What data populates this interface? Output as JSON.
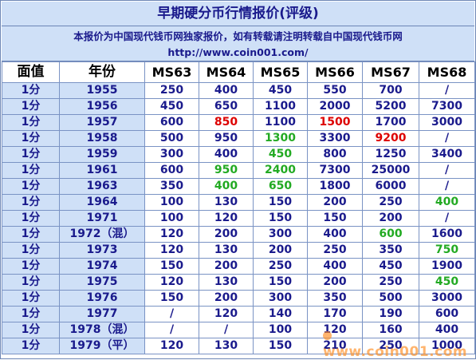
{
  "title": "早期硬分币行情报价(评级)",
  "notice": {
    "line1": "本报价为中国现代钱币网独家报价，如有转载请注明转载自中国现代钱币网",
    "line2": "http://www.coin001.com/"
  },
  "colors": {
    "header_bg": "#cfe0f7",
    "text_blue": "#1a1a8c",
    "highlight_red": "#dd0000",
    "highlight_green": "#22aa22"
  },
  "table": {
    "headers": [
      "面值",
      "年份",
      "MS63",
      "MS64",
      "MS65",
      "MS66",
      "MS67",
      "MS68"
    ],
    "rows": [
      {
        "denom": "1分",
        "year": "1955",
        "values": [
          "250",
          "400",
          "450",
          "550",
          "700",
          "/"
        ]
      },
      {
        "denom": "1分",
        "year": "1956",
        "values": [
          "450",
          "650",
          "1100",
          "2000",
          "5200",
          "7300"
        ]
      },
      {
        "denom": "1分",
        "year": "1957",
        "values": [
          "600",
          "850",
          "1100",
          "1500",
          "1700",
          "3000"
        ]
      },
      {
        "denom": "1分",
        "year": "1958",
        "values": [
          "500",
          "950",
          "1300",
          "3300",
          "9200",
          "/"
        ]
      },
      {
        "denom": "1分",
        "year": "1959",
        "values": [
          "300",
          "400",
          "450",
          "800",
          "1250",
          "3400"
        ]
      },
      {
        "denom": "1分",
        "year": "1961",
        "values": [
          "600",
          "950",
          "2400",
          "7300",
          "25000",
          "/"
        ]
      },
      {
        "denom": "1分",
        "year": "1963",
        "values": [
          "350",
          "400",
          "650",
          "1800",
          "6000",
          "/"
        ]
      },
      {
        "denom": "1分",
        "year": "1964",
        "values": [
          "100",
          "130",
          "150",
          "200",
          "250",
          "400"
        ]
      },
      {
        "denom": "1分",
        "year": "1971",
        "values": [
          "100",
          "120",
          "150",
          "150",
          "200",
          "/"
        ]
      },
      {
        "denom": "1分",
        "year": "1972（混）",
        "values": [
          "120",
          "200",
          "300",
          "400",
          "600",
          "1600"
        ]
      },
      {
        "denom": "1分",
        "year": "1973",
        "values": [
          "120",
          "130",
          "200",
          "250",
          "350",
          "750"
        ]
      },
      {
        "denom": "1分",
        "year": "1974",
        "values": [
          "150",
          "200",
          "250",
          "400",
          "450",
          "1900"
        ]
      },
      {
        "denom": "1分",
        "year": "1975",
        "values": [
          "120",
          "130",
          "150",
          "200",
          "250",
          "450"
        ]
      },
      {
        "denom": "1分",
        "year": "1976",
        "values": [
          "150",
          "200",
          "300",
          "350",
          "500",
          "3000"
        ]
      },
      {
        "denom": "1分",
        "year": "1977",
        "values": [
          "/",
          "120",
          "140",
          "170",
          "190",
          "600"
        ]
      },
      {
        "denom": "1分",
        "year": "1978（混）",
        "values": [
          "/",
          "/",
          "100",
          "120",
          "160",
          "400"
        ]
      },
      {
        "denom": "1分",
        "year": "1979（平）",
        "values": [
          "120",
          "130",
          "150",
          "210",
          "250",
          "1000"
        ]
      }
    ],
    "highlights": {
      "2-1": "red",
      "2-3": "red",
      "3-2": "green",
      "3-4": "red",
      "4-2": "green",
      "5-1": "green",
      "5-2": "green",
      "6-1": "green",
      "6-2": "green",
      "7-5": "green",
      "9-4": "green",
      "10-5": "green",
      "12-5": "green"
    }
  },
  "watermark": "www.coin001.com"
}
